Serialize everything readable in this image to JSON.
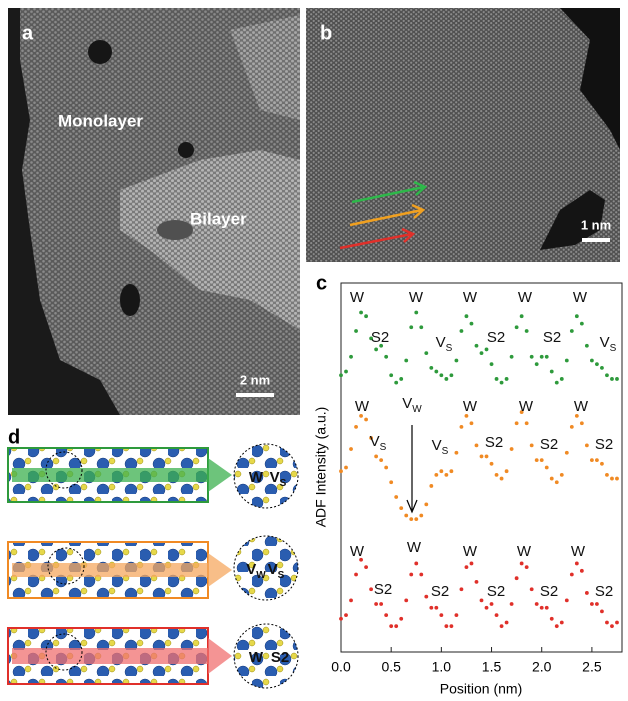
{
  "panel_a": {
    "label": "a",
    "regions": [
      "Monolayer",
      "Bilayer"
    ],
    "scale_bar": "2 nm"
  },
  "panel_b": {
    "label": "b",
    "scale_bar": "1 nm"
  },
  "panel_d": {
    "label": "d",
    "insets": [
      [
        {
          "text": "W"
        },
        {
          "text": "V",
          "subscript": "S"
        }
      ],
      [
        {
          "text": "V",
          "subscript": "W"
        },
        {
          "text": "V",
          "subscript": "S"
        }
      ],
      [
        {
          "text": "W"
        },
        {
          "text": "S2"
        }
      ]
    ]
  },
  "chart_data": {
    "type": "line",
    "panel_label": "c",
    "xlabel": "Position (nm)",
    "ylabel": "ADF Intensity (a.u.)",
    "xlim": [
      0,
      2.8
    ],
    "xticks": [
      {
        "value": 0,
        "label": "0.0"
      },
      0.5,
      {
        "value": 1,
        "label": "1.0"
      },
      1.5,
      {
        "value": 2,
        "label": "2.0"
      },
      2.5
    ],
    "ylim": [
      0,
      10
    ],
    "x": [
      0,
      0.05,
      0.1,
      0.15,
      0.2,
      0.25,
      0.3,
      0.35,
      0.4,
      0.45,
      0.5,
      0.55,
      0.6,
      0.65,
      0.7,
      0.75,
      0.8,
      0.85,
      0.9,
      0.95,
      1,
      1.05,
      1.1,
      1.15,
      1.2,
      1.25,
      1.3,
      1.35,
      1.4,
      1.45,
      1.5,
      1.55,
      1.6,
      1.65,
      1.7,
      1.75,
      1.8,
      1.85,
      1.9,
      1.95,
      2,
      2.05,
      2.1,
      2.15,
      2.2,
      2.25,
      2.3,
      2.35,
      2.4,
      2.45,
      2.5,
      2.55,
      2.6,
      2.65,
      2.7,
      2.75
    ],
    "series": [
      {
        "color": "#2e9a3c",
        "values": [
          7.5,
          7.6,
          8.0,
          8.7,
          9.2,
          9.1,
          8.5,
          8.2,
          8.3,
          8.0,
          7.5,
          7.3,
          7.4,
          7.9,
          8.8,
          9.2,
          8.8,
          8.1,
          7.7,
          7.6,
          7.5,
          7.4,
          7.5,
          7.9,
          8.7,
          9.1,
          8.9,
          8.3,
          8.1,
          8.2,
          7.8,
          7.4,
          7.3,
          7.4,
          8.0,
          8.8,
          9.1,
          8.7,
          8.0,
          7.8,
          8.0,
          8.0,
          7.6,
          7.3,
          7.4,
          7.9,
          8.7,
          9.1,
          8.9,
          8.3,
          7.9,
          7.8,
          7.7,
          7.5,
          7.4,
          7.4
        ],
        "annotations": [
          {
            "text": "W"
          },
          {
            "text": "S2"
          },
          {
            "text": "W"
          },
          {
            "text": "V",
            "subscript": "S"
          },
          {
            "text": "W"
          },
          {
            "text": "S2"
          },
          {
            "text": "W"
          },
          {
            "text": "S2"
          },
          {
            "text": "W"
          },
          {
            "text": "V",
            "subscript": "S"
          }
        ]
      },
      {
        "color": "#f08a24",
        "values": [
          4.9,
          5.0,
          5.5,
          6.1,
          6.4,
          6.3,
          5.8,
          5.3,
          5.2,
          5.0,
          4.6,
          4.2,
          3.9,
          3.7,
          3.6,
          3.6,
          3.7,
          4.0,
          4.5,
          4.8,
          4.9,
          4.8,
          4.9,
          5.4,
          6.1,
          6.4,
          6.2,
          5.6,
          5.3,
          5.3,
          5.1,
          4.8,
          4.7,
          4.9,
          5.5,
          6.2,
          6.5,
          6.2,
          5.6,
          5.2,
          5.2,
          5.0,
          4.7,
          4.6,
          4.8,
          5.4,
          6.1,
          6.4,
          6.2,
          5.6,
          5.2,
          5.2,
          5.1,
          4.8,
          4.7,
          4.7
        ],
        "annotations": [
          {
            "text": "W"
          },
          {
            "text": "V",
            "subscript": "S"
          },
          {
            "text": "V",
            "subscript": "W"
          },
          {
            "text": "V",
            "subscript": "S"
          },
          {
            "text": "W"
          },
          {
            "text": "S2"
          },
          {
            "text": "W"
          },
          {
            "text": "S2"
          },
          {
            "text": "W"
          },
          {
            "text": "S2"
          }
        ]
      },
      {
        "color": "#e0302a",
        "values": [
          0.9,
          1.0,
          1.4,
          2.1,
          2.5,
          2.3,
          1.7,
          1.3,
          1.3,
          1.0,
          0.7,
          0.7,
          0.9,
          1.4,
          2.1,
          2.4,
          2.1,
          1.5,
          1.2,
          1.2,
          1.0,
          0.7,
          0.7,
          1.0,
          1.7,
          2.3,
          2.4,
          1.9,
          1.4,
          1.2,
          1.3,
          1.0,
          0.7,
          0.8,
          1.3,
          2.0,
          2.4,
          2.3,
          1.7,
          1.3,
          1.2,
          1.2,
          0.9,
          0.7,
          0.8,
          1.4,
          2.1,
          2.4,
          2.2,
          1.6,
          1.3,
          1.3,
          1.1,
          0.8,
          0.7,
          0.8
        ],
        "annotations": [
          {
            "text": "W"
          },
          {
            "text": "S2"
          },
          {
            "text": "W"
          },
          {
            "text": "S2"
          },
          {
            "text": "W"
          },
          {
            "text": "S2"
          },
          {
            "text": "W"
          },
          {
            "text": "S2"
          },
          {
            "text": "W"
          },
          {
            "text": "S2"
          }
        ]
      }
    ]
  }
}
